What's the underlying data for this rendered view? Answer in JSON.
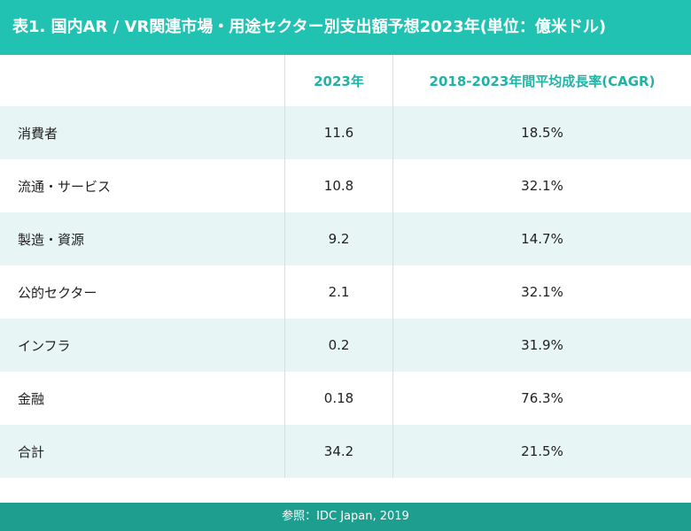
{
  "title": "表1. 国内AR / VR関連市場・用途セクター別支出額予想2023年(単位：億米ドル)",
  "table": {
    "headers": [
      "",
      "2023年",
      "2018-2023年間平均成長率(CAGR)"
    ],
    "rows": [
      {
        "sector": "消費者",
        "value_2023": "11.6",
        "cagr": "18.5%"
      },
      {
        "sector": "流通・サービス",
        "value_2023": "10.8",
        "cagr": "32.1%"
      },
      {
        "sector": "製造・資源",
        "value_2023": "9.2",
        "cagr": "14.7%"
      },
      {
        "sector": "公的セクター",
        "value_2023": "2.1",
        "cagr": "32.1%"
      },
      {
        "sector": "インフラ",
        "value_2023": "0.2",
        "cagr": "31.9%"
      },
      {
        "sector": "金融",
        "value_2023": "0.18",
        "cagr": "76.3%"
      },
      {
        "sector": "合計",
        "value_2023": "34.2",
        "cagr": "21.5%"
      }
    ]
  },
  "footer": "参照：IDC Japan, 2019",
  "colors": {
    "title_bg": "#22c2b3",
    "header_text": "#1fb3a5",
    "row_shade": "#e7f6f4",
    "footer_bg": "#1e9e8f"
  }
}
